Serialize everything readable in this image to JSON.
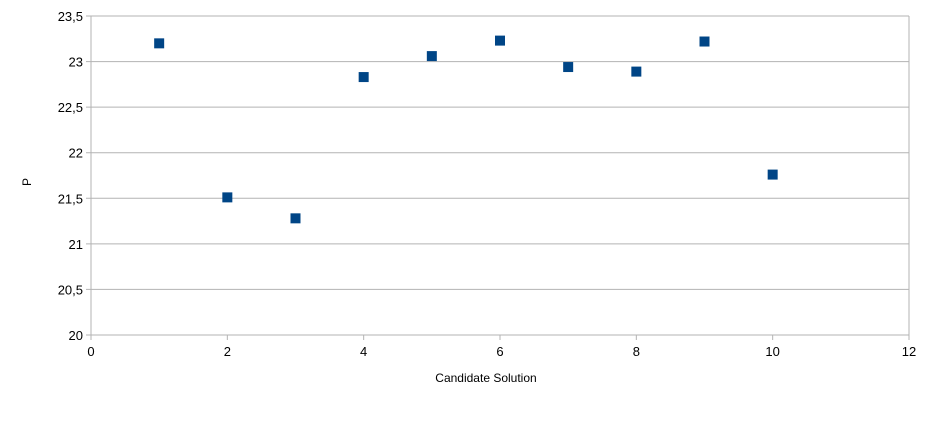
{
  "chart_data": {
    "type": "scatter",
    "title": "",
    "xlabel": "Candidate Solution",
    "ylabel": "P",
    "xlim": [
      0,
      12
    ],
    "ylim": [
      20,
      23.5
    ],
    "x_ticks": [
      "0",
      "2",
      "4",
      "6",
      "8",
      "10",
      "12"
    ],
    "y_ticks": [
      "20",
      "20,5",
      "21",
      "21,5",
      "22",
      "22,5",
      "23",
      "23,5"
    ],
    "grid": "horizontal",
    "legend": "none",
    "marker": "square",
    "marker_color": "#004586",
    "grid_color": "#b3b3b3",
    "x": [
      1,
      2,
      3,
      4,
      5,
      6,
      7,
      8,
      9,
      10
    ],
    "y": [
      23.2,
      21.51,
      21.28,
      22.83,
      23.06,
      23.23,
      22.94,
      22.89,
      23.22,
      21.76
    ]
  }
}
